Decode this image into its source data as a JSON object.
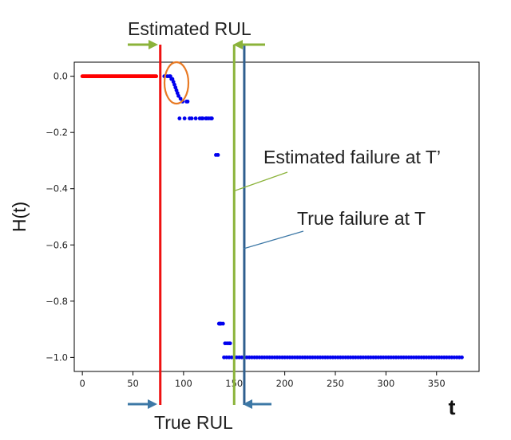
{
  "chart_data": {
    "type": "scatter",
    "ylabel": "H(t)",
    "xlabel": "t",
    "xlim": [
      -8,
      392
    ],
    "ylim": [
      -1.05,
      0.05
    ],
    "x_ticks": [
      0,
      50,
      100,
      150,
      200,
      250,
      300,
      350
    ],
    "y_ticks": [
      0.0,
      -0.2,
      -0.4,
      -0.6,
      -0.8,
      -1.0
    ],
    "x_tick_labels": [
      "0",
      "50",
      "100",
      "150",
      "200",
      "250",
      "300",
      "350"
    ],
    "y_tick_labels": [
      "0.0",
      "−0.2",
      "−0.4",
      "−0.6",
      "−0.8",
      "−1.0"
    ],
    "grid": false,
    "series": [
      {
        "color": "#ff0000",
        "x_range": [
          0,
          73
        ],
        "step": 1,
        "y": 0.0
      },
      {
        "color": "#0000ee",
        "x": [
          81,
          84,
          86,
          87,
          88,
          89,
          90,
          91,
          92,
          93,
          94,
          95,
          97,
          99,
          103,
          104,
          106,
          108,
          112,
          96,
          101,
          116,
          118,
          119,
          122,
          123,
          125,
          127,
          128,
          132,
          134,
          135,
          136,
          137,
          139,
          141,
          143,
          145,
          146
        ],
        "y": [
          0.0,
          0.0,
          0.0,
          0.0,
          -0.01,
          -0.01,
          -0.02,
          -0.03,
          -0.04,
          -0.05,
          -0.06,
          -0.07,
          -0.08,
          -0.09,
          -0.09,
          -0.09,
          -0.15,
          -0.15,
          -0.15,
          -0.15,
          -0.15,
          -0.15,
          -0.15,
          -0.15,
          -0.15,
          -0.15,
          -0.15,
          -0.15,
          -0.15,
          -0.28,
          -0.28,
          -0.88,
          -0.88,
          -0.88,
          -0.88,
          -0.95,
          -0.95,
          -0.95,
          -0.95
        ]
      },
      {
        "color": "#0000ee",
        "x_range": [
          140,
          375
        ],
        "step": 2.5,
        "y": -1.0
      }
    ],
    "vertical_lines": [
      {
        "x": 77,
        "color": "#ee1111"
      },
      {
        "x": 150,
        "color": "#8bb33a"
      },
      {
        "x": 160,
        "color": "#2f5f8f"
      }
    ],
    "annotations": {
      "estimated_rul": "Estimated RUL",
      "true_rul": "True RUL",
      "estimated_failure": "Estimated failure at T’",
      "true_failure": "True failure at T"
    },
    "colors": {
      "estimated": "#8bb33a",
      "true": "#3d78a6",
      "highlight": "#e87a24"
    }
  }
}
